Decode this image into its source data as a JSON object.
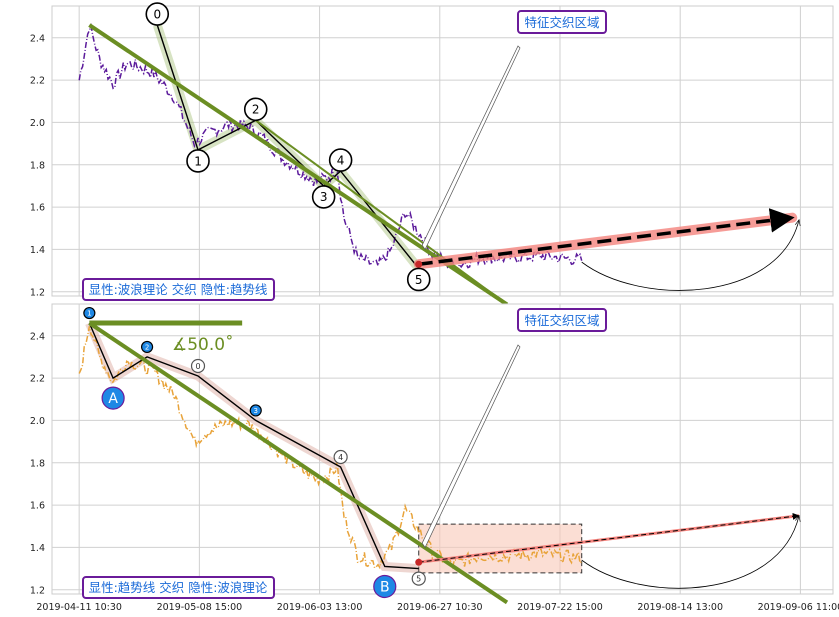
{
  "chart_data": {
    "type": "line",
    "x_ticks": [
      "2019-04-11 10:30",
      "2019-05-08 15:00",
      "2019-06-03 13:00",
      "2019-06-27 10:30",
      "2019-07-22 15:00",
      "2019-08-14 13:00",
      "2019-09-06 11:00"
    ],
    "y_ticks": [
      "1.2",
      "1.4",
      "1.6",
      "1.8",
      "2.0",
      "2.2",
      "2.4"
    ],
    "ylim": [
      1.18,
      2.55
    ],
    "xlim": [
      -8,
      222
    ],
    "grid": true,
    "colors": {
      "price_top": "#5b1a9b",
      "price_bottom": "#e8a33a",
      "trend": "#6b8e23",
      "channel": "#f4837d",
      "box_border": "#6a1b9a",
      "box_text": "#1a6ad8",
      "shade": "#f8c8b8"
    },
    "panels": [
      {
        "annotation_label": "特征交织区域",
        "legend_label": "显性:波浪理论 交织 隐性:趋势线",
        "price_style": "dashdot",
        "wave_points": [
          {
            "label": "0",
            "x": 23,
            "y": 2.46
          },
          {
            "label": "1",
            "x": 35,
            "y": 1.87
          },
          {
            "label": "2",
            "x": 52,
            "y": 2.01
          },
          {
            "label": "3",
            "x": 72,
            "y": 1.7
          },
          {
            "label": "4",
            "x": 77,
            "y": 1.77
          },
          {
            "label": "5",
            "x": 100,
            "y": 1.31
          }
        ],
        "trend_lines": [
          {
            "x": [
              3,
              126
            ],
            "y": [
              2.46,
              1.14
            ]
          },
          {
            "x": [
              52,
              126
            ],
            "y": [
              2.01,
              1.14
            ]
          }
        ],
        "channel_line": {
          "x": [
            100,
            210
          ],
          "y": [
            1.33,
            1.55
          ]
        },
        "forecast_end": {
          "x": 212,
          "y": 1.54
        }
      },
      {
        "annotation_label": "特征交织区域",
        "legend_label": "显性:趋势线 交织 隐性:波浪理论",
        "angle_label": "∡50.0˚",
        "price_style": "dashdot",
        "wave_points": [
          {
            "label": "1",
            "x": 3,
            "y": 2.46
          },
          {
            "label": "A",
            "x": 10,
            "y": 2.2
          },
          {
            "label": "2",
            "x": 20,
            "y": 2.3
          },
          {
            "label": "0",
            "x": 35,
            "y": 2.21
          },
          {
            "label": "3",
            "x": 52,
            "y": 2.0
          },
          {
            "label": "4",
            "x": 77,
            "y": 1.78
          },
          {
            "label": "B",
            "x": 90,
            "y": 1.31
          },
          {
            "label": "5",
            "x": 100,
            "y": 1.3
          }
        ],
        "trend_lines": [
          {
            "x": [
              3,
              126
            ],
            "y": [
              2.46,
              1.14
            ]
          }
        ],
        "shade_box": {
          "x": [
            100,
            148
          ],
          "y": [
            1.28,
            1.51
          ]
        },
        "forecast_end": {
          "x": 212,
          "y": 1.55
        }
      }
    ]
  }
}
